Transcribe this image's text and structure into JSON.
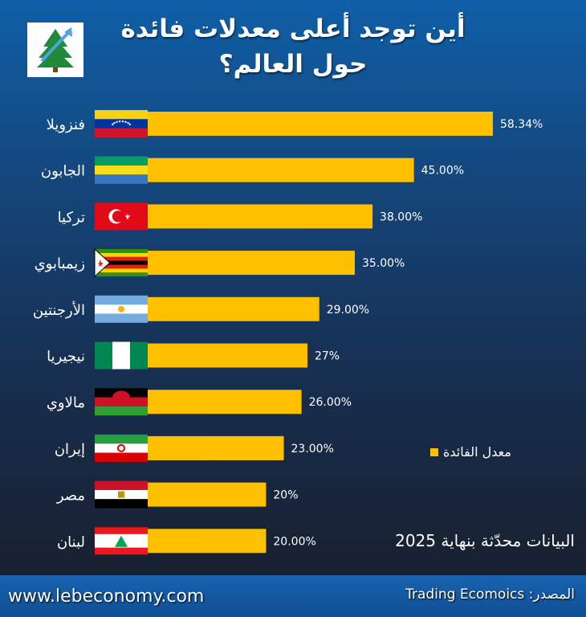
{
  "title_line1": "أين توجد أعلى معدلات فائدة",
  "title_line2": "حول العالم؟",
  "legend_label": "معدل الفائدة",
  "updated_note": "البيانات محدّثة بنهاية 2025",
  "website": "www.lebeconomy.com",
  "source_label": "المصدر: Trading Ecomoics",
  "colors": {
    "bar": "#ffc000",
    "text": "#ffffff"
  },
  "chart_data": {
    "type": "bar",
    "orientation": "horizontal",
    "categories": [
      "فنزويلا",
      "الجابون",
      "تركيا",
      "زيمبابوي",
      "الأرجنتين",
      "نيجيريا",
      "مالاوي",
      "إيران",
      "مصر",
      "لبنان"
    ],
    "values": [
      58.34,
      45.0,
      38.0,
      35.0,
      29.0,
      27.0,
      26.0,
      23.0,
      20.0,
      20.0
    ],
    "value_labels": [
      "58.34%",
      "45.00%",
      "38.00%",
      "35.00%",
      "29.00%",
      "27%",
      "26.00%",
      "23.00%",
      "20%",
      "20.00%"
    ],
    "flags": [
      "venezuela-flag",
      "gabon-flag",
      "turkey-flag",
      "zimbabwe-flag",
      "argentina-flag",
      "nigeria-flag",
      "malawi-flag",
      "iran-flag",
      "egypt-flag",
      "lebanon-flag"
    ],
    "xlim": [
      0,
      60
    ],
    "grid": false,
    "legend": "bottom-right"
  }
}
